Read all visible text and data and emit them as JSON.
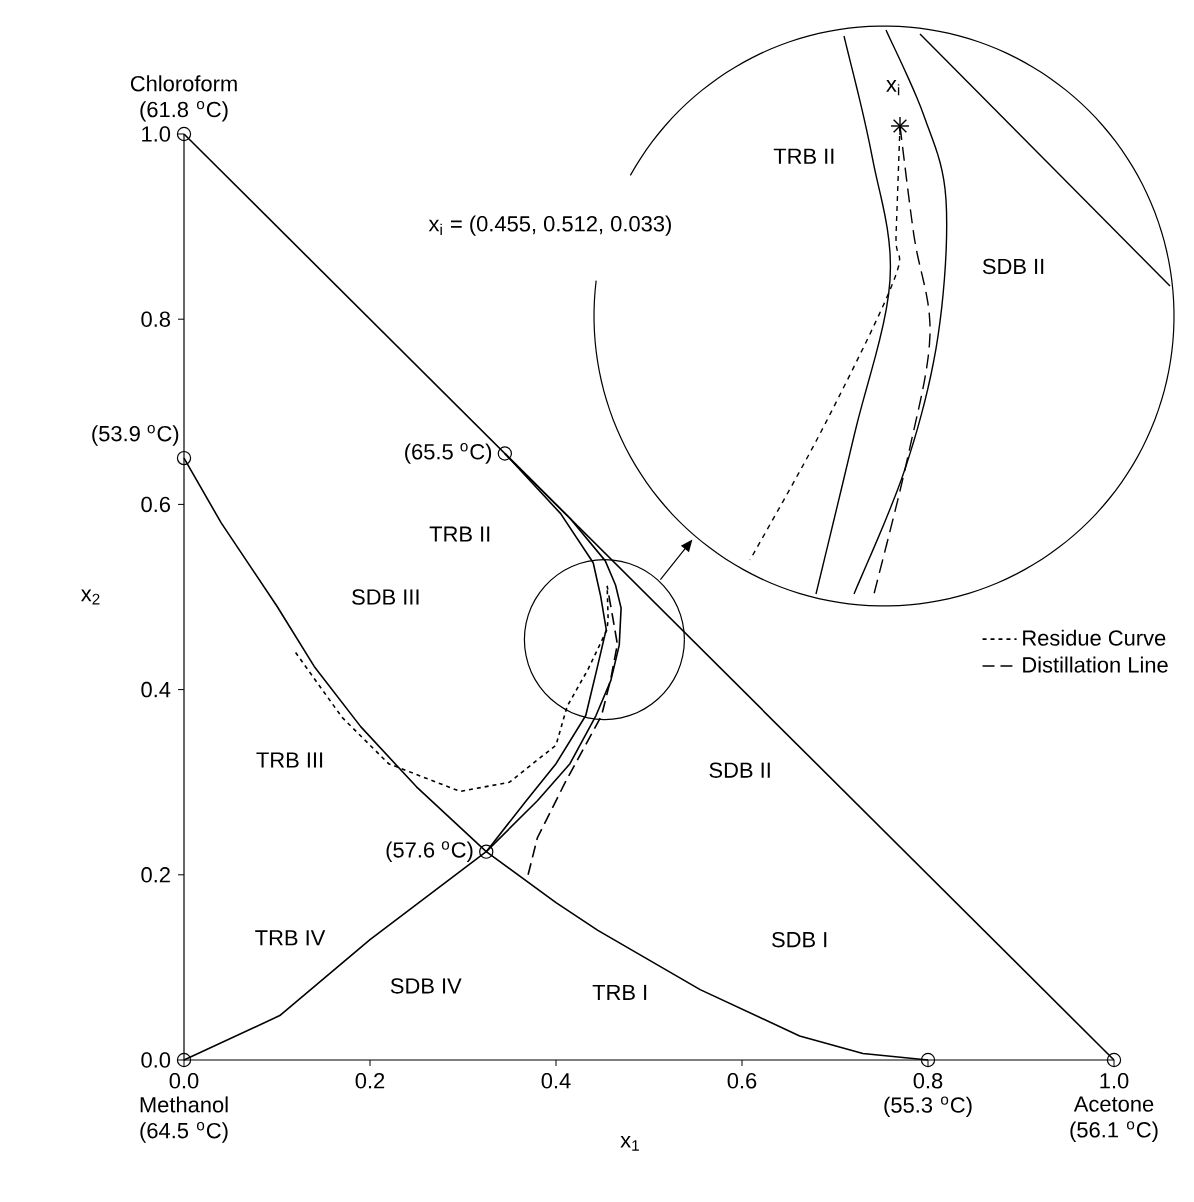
{
  "chart_data": {
    "type": "line",
    "xlabel": "x$_{1}$",
    "ylabel": "x$_{2}$",
    "xlim": [
      0,
      1
    ],
    "ylim": [
      0,
      1
    ],
    "xticks": [
      {
        "value": 0,
        "label": "0.0"
      },
      {
        "value": 0.2,
        "label": "0.2"
      },
      {
        "value": 0.4,
        "label": "0.4"
      },
      {
        "value": 0.6,
        "label": "0.6"
      },
      {
        "value": 0.8,
        "label": "0.8"
      },
      {
        "value": 1,
        "label": "1.0"
      }
    ],
    "yticks": [
      {
        "value": 0,
        "label": "0.0"
      },
      {
        "value": 0.2,
        "label": "0.2"
      },
      {
        "value": 0.4,
        "label": "0.4"
      },
      {
        "value": 0.6,
        "label": "0.6"
      },
      {
        "value": 0.8,
        "label": "0.8"
      },
      {
        "value": 1,
        "label": "1.0"
      }
    ],
    "legend": "right",
    "series": [
      {
        "color": "#000000",
        "line_style": "solid",
        "x": [
          0,
          1
        ],
        "values": [
          1,
          0
        ]
      },
      {
        "color": "#000000",
        "line_style": "solid",
        "x": [
          0,
          0.04,
          0.1,
          0.14,
          0.19,
          0.25,
          0.325,
          0.4,
          0.445,
          0.555,
          0.662,
          0.73,
          0.8
        ],
        "values": [
          0.65,
          0.58,
          0.49,
          0.425,
          0.36,
          0.295,
          0.225,
          0.17,
          0.14,
          0.076,
          0.026,
          0.007,
          0
        ]
      },
      {
        "color": "#000000",
        "line_style": "solid",
        "x": [
          0,
          0.103,
          0.2,
          0.325,
          0.368,
          0.4,
          0.432,
          0.443,
          0.454,
          0.448,
          0.44,
          0.405,
          0.345
        ],
        "values": [
          0,
          0.048,
          0.13,
          0.225,
          0.28,
          0.32,
          0.372,
          0.418,
          0.465,
          0.501,
          0.537,
          0.59,
          0.655
        ]
      },
      {
        "color": "#000000",
        "line_style": "solid",
        "x": [
          0.325,
          0.38,
          0.415,
          0.443,
          0.459,
          0.468,
          0.47,
          0.464,
          0.453,
          0.415,
          0.345
        ],
        "values": [
          0.225,
          0.28,
          0.32,
          0.372,
          0.41,
          0.448,
          0.488,
          0.513,
          0.539,
          0.585,
          0.655
        ]
      },
      {
        "name": "Residue Curve",
        "color": "#000000",
        "line_style": "dotted",
        "x": [
          0.12,
          0.17,
          0.22,
          0.297,
          0.35,
          0.4,
          0.412,
          0.434,
          0.455,
          0.456,
          0.455
        ],
        "values": [
          0.44,
          0.37,
          0.32,
          0.29,
          0.3,
          0.34,
          0.382,
          0.421,
          0.465,
          0.478,
          0.512
        ]
      },
      {
        "name": "Distillation Line",
        "color": "#000000",
        "line_style": "dashed",
        "x": [
          0.37,
          0.38,
          0.41,
          0.449,
          0.459,
          0.466,
          0.461,
          0.455
        ],
        "values": [
          0.2,
          0.24,
          0.3,
          0.372,
          0.412,
          0.449,
          0.478,
          0.512
        ]
      },
      {
        "type": "scatter",
        "marker": "circle",
        "color": "#000000",
        "x": [
          0,
          0,
          0.345,
          0.325,
          0,
          0.8,
          1
        ],
        "values": [
          1,
          0.65,
          0.655,
          0.225,
          0,
          0,
          0
        ]
      }
    ],
    "annotations": [
      {
        "text": "Chloroform (61.8 $^{o}$C)",
        "x": 0,
        "y": 1
      },
      {
        "text": "(53.9 $^{o}$C)",
        "x": 0,
        "y": 0.65
      },
      {
        "text": "(65.5 $^{o}$C)",
        "x": 0.345,
        "y": 0.655
      },
      {
        "text": "(57.6 $^{o}$C)",
        "x": 0.325,
        "y": 0.225
      },
      {
        "text": "Methanol (64.5 $^{o}$C)",
        "x": 0,
        "y": 0
      },
      {
        "text": "(55.3 $^{o}$C)",
        "x": 0.8,
        "y": 0
      },
      {
        "text": "Acetone (56.1 $^{o}$C)",
        "x": 1,
        "y": 0
      },
      "x$_{i}$ = (0.455, 0.512, 0.033)",
      "TRB II",
      "SDB III",
      "TRB III",
      "TRB IV",
      "SDB IV",
      "TRB I",
      "SDB I",
      "SDB II",
      "x$_{i}$",
      "TRB II",
      "SDB II"
    ]
  }
}
